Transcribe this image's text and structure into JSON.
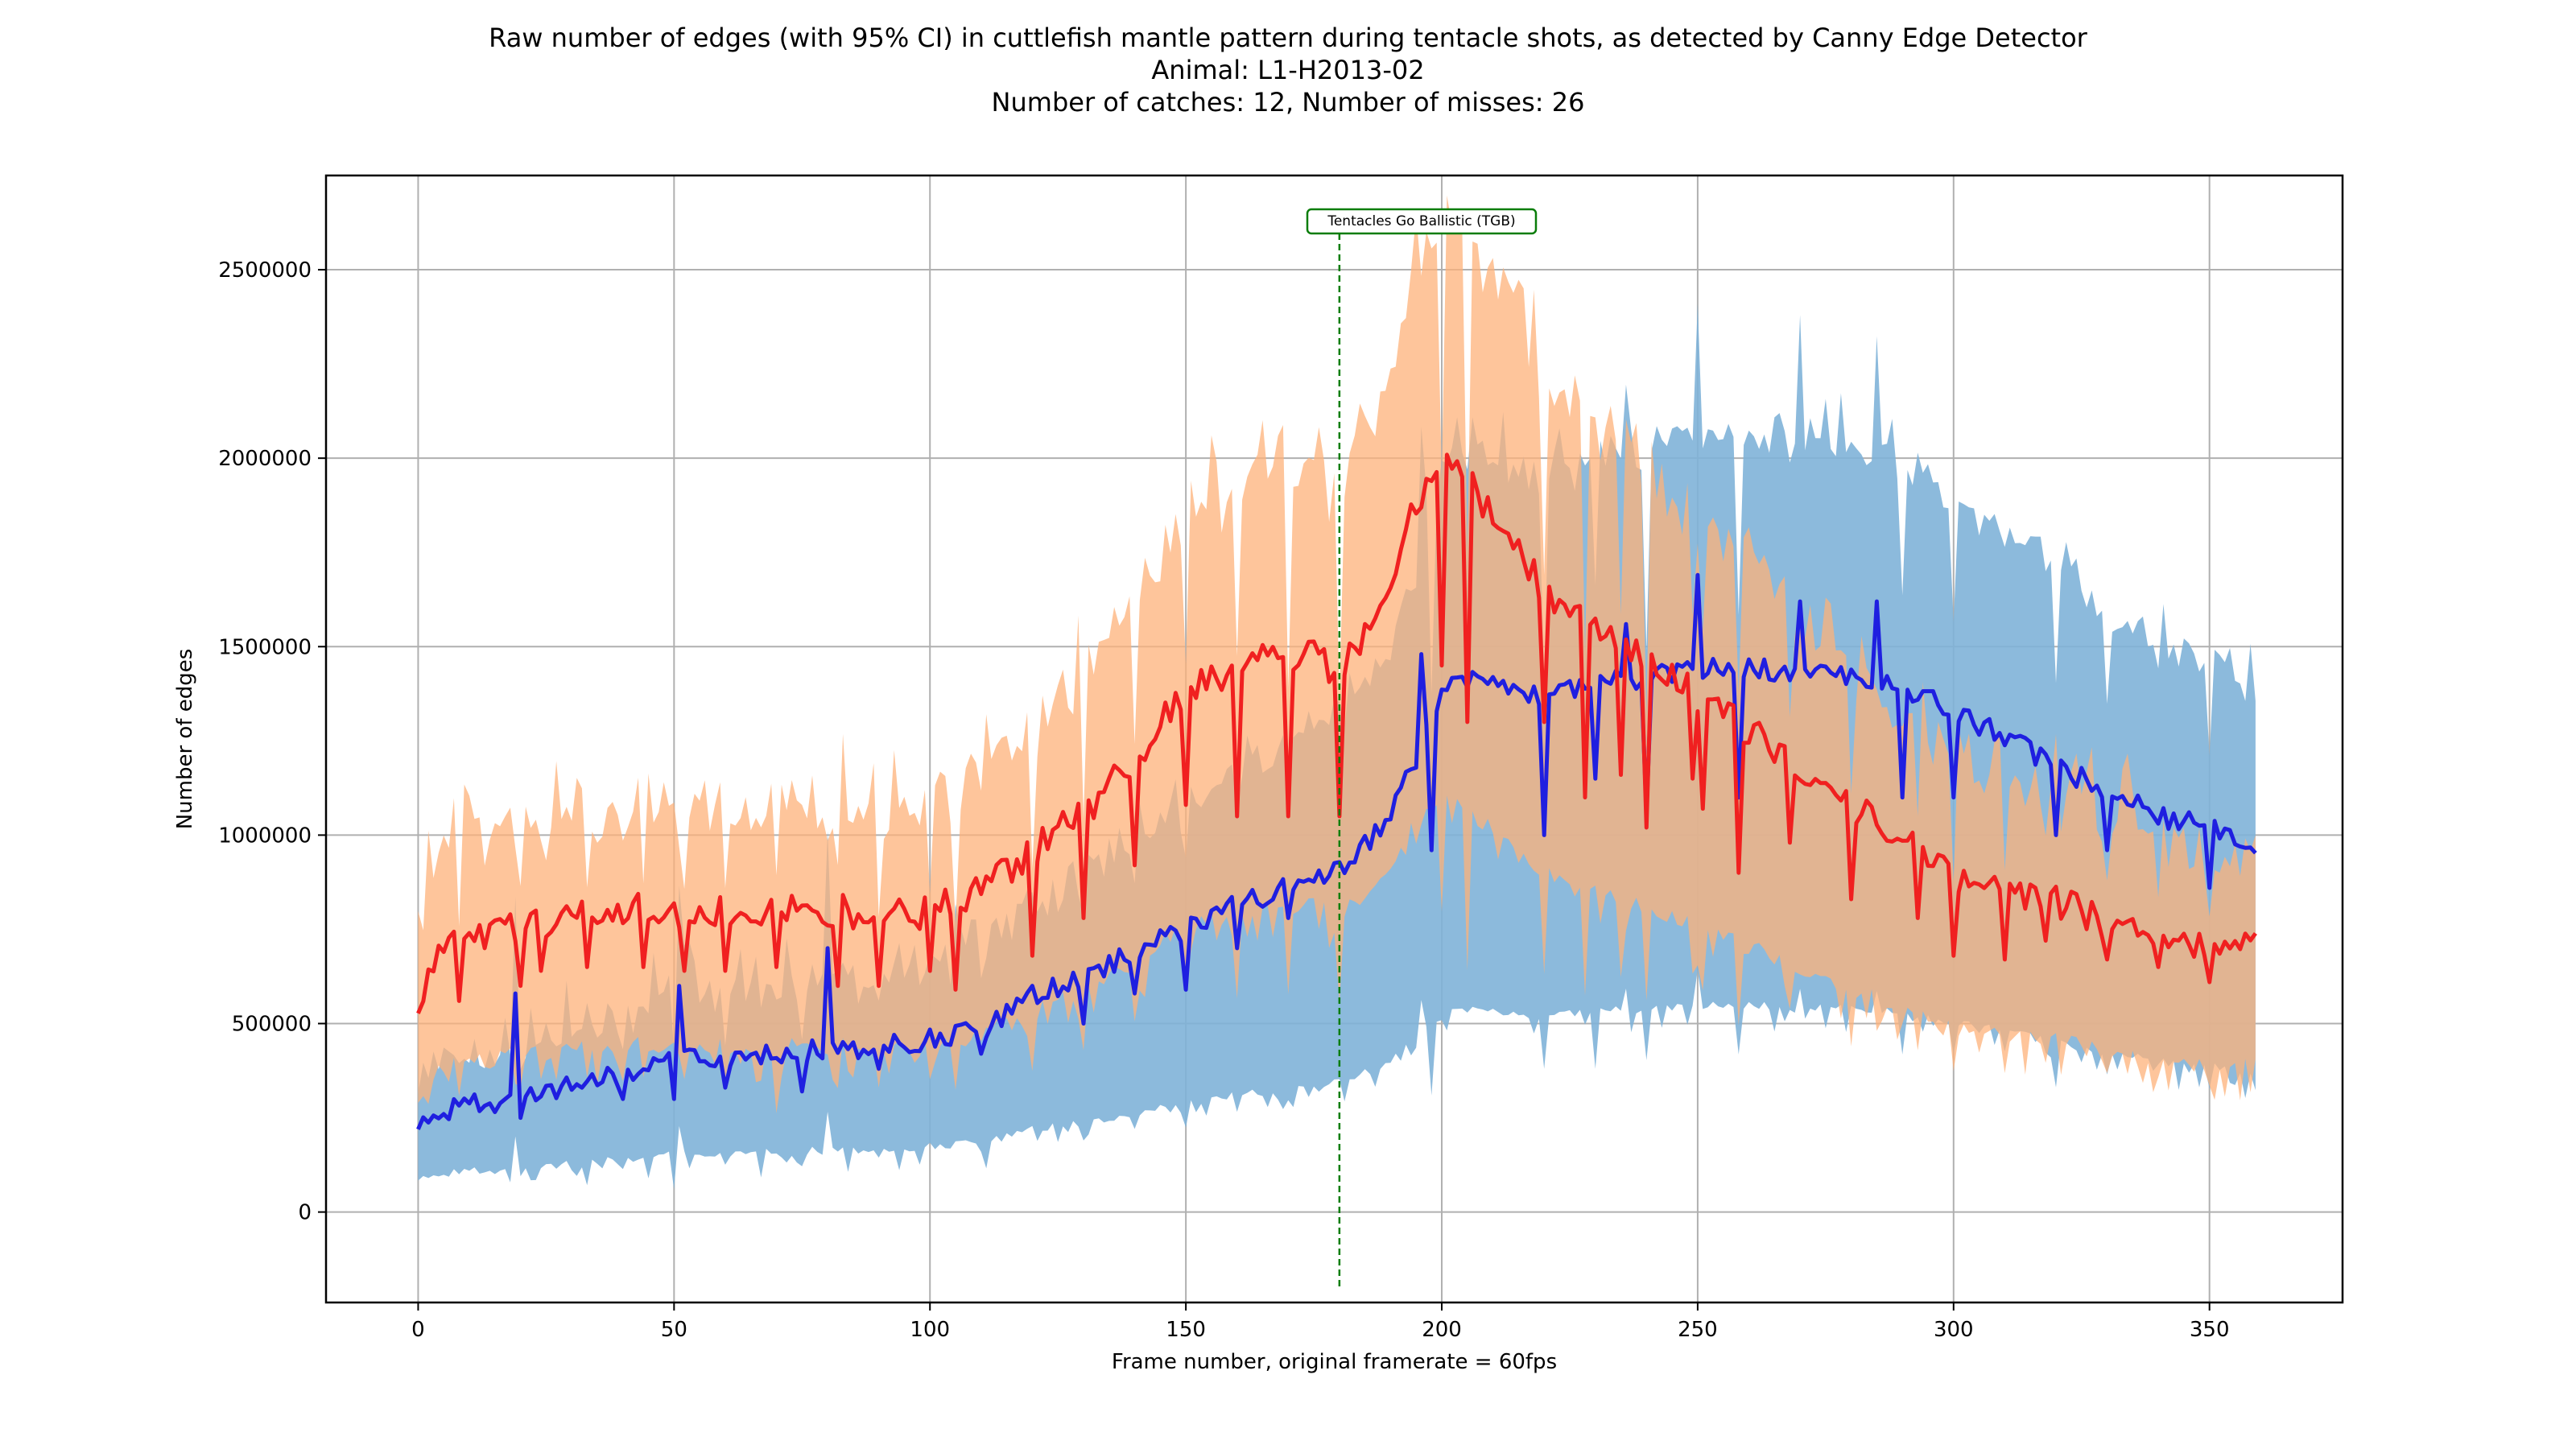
{
  "chart_data": {
    "type": "line",
    "title_lines": [
      "Raw number of edges (with 95% CI) in cuttlefish mantle pattern during tentacle shots, as detected by Canny Edge Detector",
      "Animal: L1-H2013-02",
      "Number of catches: 12, Number of misses: 26"
    ],
    "xlabel": "Frame number, original framerate = 60fps",
    "ylabel": "Number of edges",
    "xlim": [
      -18,
      376
    ],
    "ylim": [
      -240000,
      2750000
    ],
    "xticks": [
      0,
      50,
      100,
      150,
      200,
      250,
      300,
      350
    ],
    "yticks": [
      0,
      500000,
      1000000,
      1500000,
      2000000,
      2500000
    ],
    "grid": true,
    "annotation": {
      "label": "Tentacles Go Ballistic (TGB)",
      "x": 180,
      "color": "#0a7d0a"
    },
    "colors": {
      "catch_line": "#1f1fe0",
      "catch_band": "#7fb2d8",
      "miss_line": "#f02020",
      "miss_band": "#fdb27a"
    },
    "series": [
      {
        "key": "miss",
        "x_start": 0,
        "x_end": 359,
        "keyframes": [
          [
            0,
            570000
          ],
          [
            5,
            690000
          ],
          [
            10,
            720000
          ],
          [
            20,
            760000
          ],
          [
            30,
            790000
          ],
          [
            40,
            800000
          ],
          [
            60,
            800000
          ],
          [
            80,
            800000
          ],
          [
            100,
            790000
          ],
          [
            110,
            860000
          ],
          [
            120,
            960000
          ],
          [
            130,
            1060000
          ],
          [
            140,
            1200000
          ],
          [
            150,
            1380000
          ],
          [
            160,
            1450000
          ],
          [
            170,
            1480000
          ],
          [
            175,
            1470000
          ],
          [
            180,
            1420000
          ],
          [
            185,
            1550000
          ],
          [
            190,
            1680000
          ],
          [
            195,
            1880000
          ],
          [
            200,
            2000000
          ],
          [
            205,
            1950000
          ],
          [
            210,
            1850000
          ],
          [
            215,
            1760000
          ],
          [
            220,
            1650000
          ],
          [
            230,
            1570000
          ],
          [
            240,
            1450000
          ],
          [
            250,
            1370000
          ],
          [
            260,
            1280000
          ],
          [
            270,
            1170000
          ],
          [
            280,
            1070000
          ],
          [
            290,
            1000000
          ],
          [
            300,
            900000
          ],
          [
            310,
            840000
          ],
          [
            320,
            820000
          ],
          [
            330,
            770000
          ],
          [
            340,
            720000
          ],
          [
            350,
            690000
          ],
          [
            359,
            750000
          ]
        ],
        "dips": [
          [
            8,
            560000
          ],
          [
            20,
            600000
          ],
          [
            24,
            640000
          ],
          [
            33,
            650000
          ],
          [
            44,
            650000
          ],
          [
            52,
            640000
          ],
          [
            60,
            640000
          ],
          [
            70,
            650000
          ],
          [
            82,
            600000
          ],
          [
            90,
            600000
          ],
          [
            100,
            640000
          ],
          [
            105,
            590000
          ],
          [
            120,
            680000
          ],
          [
            130,
            780000
          ],
          [
            140,
            920000
          ],
          [
            150,
            1080000
          ],
          [
            160,
            1050000
          ],
          [
            170,
            1050000
          ],
          [
            180,
            1050000
          ],
          [
            200,
            1450000
          ],
          [
            205,
            1300000
          ],
          [
            220,
            1300000
          ],
          [
            228,
            1100000
          ],
          [
            235,
            1160000
          ],
          [
            240,
            1020000
          ],
          [
            249,
            1150000
          ],
          [
            251,
            1070000
          ],
          [
            258,
            900000
          ],
          [
            268,
            980000
          ],
          [
            280,
            830000
          ],
          [
            293,
            780000
          ],
          [
            300,
            680000
          ],
          [
            310,
            670000
          ],
          [
            318,
            720000
          ],
          [
            330,
            670000
          ],
          [
            340,
            650000
          ],
          [
            350,
            610000
          ]
        ],
        "jitter": 45000,
        "ci_upper_ratio": 1.33,
        "ci_lower_ratio": 0.55,
        "ci_spike": 160000
      },
      {
        "key": "catch",
        "x_start": 0,
        "x_end": 359,
        "keyframes": [
          [
            0,
            230000
          ],
          [
            10,
            290000
          ],
          [
            20,
            300000
          ],
          [
            30,
            340000
          ],
          [
            40,
            360000
          ],
          [
            50,
            400000
          ],
          [
            60,
            410000
          ],
          [
            70,
            420000
          ],
          [
            80,
            430000
          ],
          [
            90,
            440000
          ],
          [
            100,
            460000
          ],
          [
            110,
            480000
          ],
          [
            120,
            580000
          ],
          [
            130,
            620000
          ],
          [
            140,
            690000
          ],
          [
            150,
            750000
          ],
          [
            160,
            820000
          ],
          [
            170,
            860000
          ],
          [
            180,
            900000
          ],
          [
            190,
            1050000
          ],
          [
            195,
            1200000
          ],
          [
            200,
            1380000
          ],
          [
            205,
            1420000
          ],
          [
            210,
            1400000
          ],
          [
            215,
            1380000
          ],
          [
            220,
            1370000
          ],
          [
            230,
            1400000
          ],
          [
            240,
            1420000
          ],
          [
            250,
            1440000
          ],
          [
            260,
            1440000
          ],
          [
            270,
            1430000
          ],
          [
            280,
            1420000
          ],
          [
            290,
            1400000
          ],
          [
            300,
            1320000
          ],
          [
            310,
            1260000
          ],
          [
            320,
            1180000
          ],
          [
            330,
            1120000
          ],
          [
            340,
            1050000
          ],
          [
            350,
            1020000
          ],
          [
            359,
            970000
          ]
        ],
        "dips": [
          [
            5,
            260000
          ],
          [
            20,
            250000
          ],
          [
            40,
            300000
          ],
          [
            50,
            300000
          ],
          [
            60,
            330000
          ],
          [
            75,
            320000
          ],
          [
            90,
            380000
          ],
          [
            110,
            420000
          ],
          [
            130,
            500000
          ],
          [
            140,
            580000
          ],
          [
            150,
            590000
          ],
          [
            160,
            700000
          ],
          [
            170,
            780000
          ],
          [
            198,
            960000
          ],
          [
            220,
            1000000
          ],
          [
            230,
            1150000
          ],
          [
            240,
            1060000
          ],
          [
            258,
            1100000
          ],
          [
            270,
            1250000
          ],
          [
            290,
            1100000
          ],
          [
            300,
            1100000
          ],
          [
            320,
            1000000
          ],
          [
            330,
            960000
          ],
          [
            350,
            860000
          ]
        ],
        "spikes": [
          [
            19,
            580000
          ],
          [
            51,
            600000
          ],
          [
            80,
            700000
          ],
          [
            196,
            1480000
          ],
          [
            236,
            1560000
          ],
          [
            250,
            1690000
          ],
          [
            270,
            1620000
          ],
          [
            285,
            1620000
          ]
        ],
        "jitter": 30000,
        "ci_upper_ratio": 1.42,
        "ci_lower_ratio": 0.38,
        "ci_spike": 110000
      }
    ]
  }
}
